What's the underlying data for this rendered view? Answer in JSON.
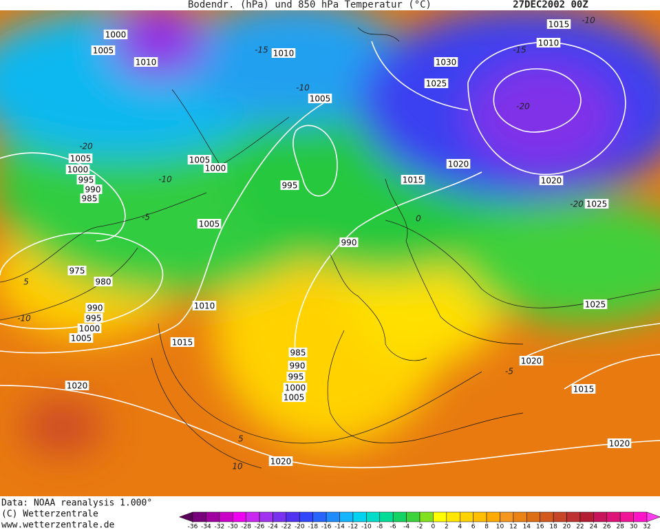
{
  "header": {
    "title": "Bodendr. (hPa) und 850 hPa Temperatur (°C)",
    "date": "27DEC2002 00Z"
  },
  "footer": {
    "lines": [
      "Data: NOAA reanalysis 1.000°",
      "(C) Wetterzentrale",
      "www.wetterzentrale.de"
    ]
  },
  "isobar_labels": [
    "1000",
    "1005",
    "1010",
    "1010",
    "1005",
    "1030",
    "1025",
    "1015",
    "1010",
    "1005",
    "1000",
    "995",
    "990",
    "985",
    "1005",
    "1000",
    "995",
    "1020",
    "1015",
    "1020",
    "1025",
    "1005",
    "990",
    "975",
    "980",
    "990",
    "995",
    "1000",
    "1005",
    "1010",
    "1015",
    "1025",
    "985",
    "990",
    "995",
    "1000",
    "1005",
    "1020",
    "1015",
    "1020",
    "1020",
    "1020"
  ],
  "temperature_labels": [
    -10,
    -15,
    -15,
    -10,
    -20,
    -20,
    -10,
    -5,
    -20,
    0,
    5,
    -10,
    -5,
    5,
    10
  ],
  "colorbar": {
    "labels": [
      -36,
      -34,
      -32,
      -30,
      -28,
      -26,
      -24,
      -22,
      -20,
      -18,
      -16,
      -14,
      -12,
      -10,
      -8,
      -6,
      -4,
      -2,
      0,
      2,
      4,
      6,
      8,
      10,
      12,
      14,
      16,
      18,
      20,
      22,
      24,
      26,
      28,
      30,
      32
    ],
    "colors": [
      "#5a005a",
      "#78007a",
      "#a000a0",
      "#c800c8",
      "#f000f0",
      "#c828f0",
      "#a032f0",
      "#7832f0",
      "#5032f0",
      "#3246ff",
      "#2864ff",
      "#1e8cff",
      "#14b4ff",
      "#00d2f0",
      "#00dcc8",
      "#00dc96",
      "#14d264",
      "#3cd23c",
      "#82e11e",
      "#ffff00",
      "#ffe600",
      "#ffd200",
      "#ffbe00",
      "#ffaa00",
      "#f5961e",
      "#eb8214",
      "#dc6e14",
      "#d25a1e",
      "#c84628",
      "#be3232",
      "#b41e32",
      "#c8145a",
      "#dc1478",
      "#f01496",
      "#ff14c8",
      "#ff3cf0"
    ]
  }
}
